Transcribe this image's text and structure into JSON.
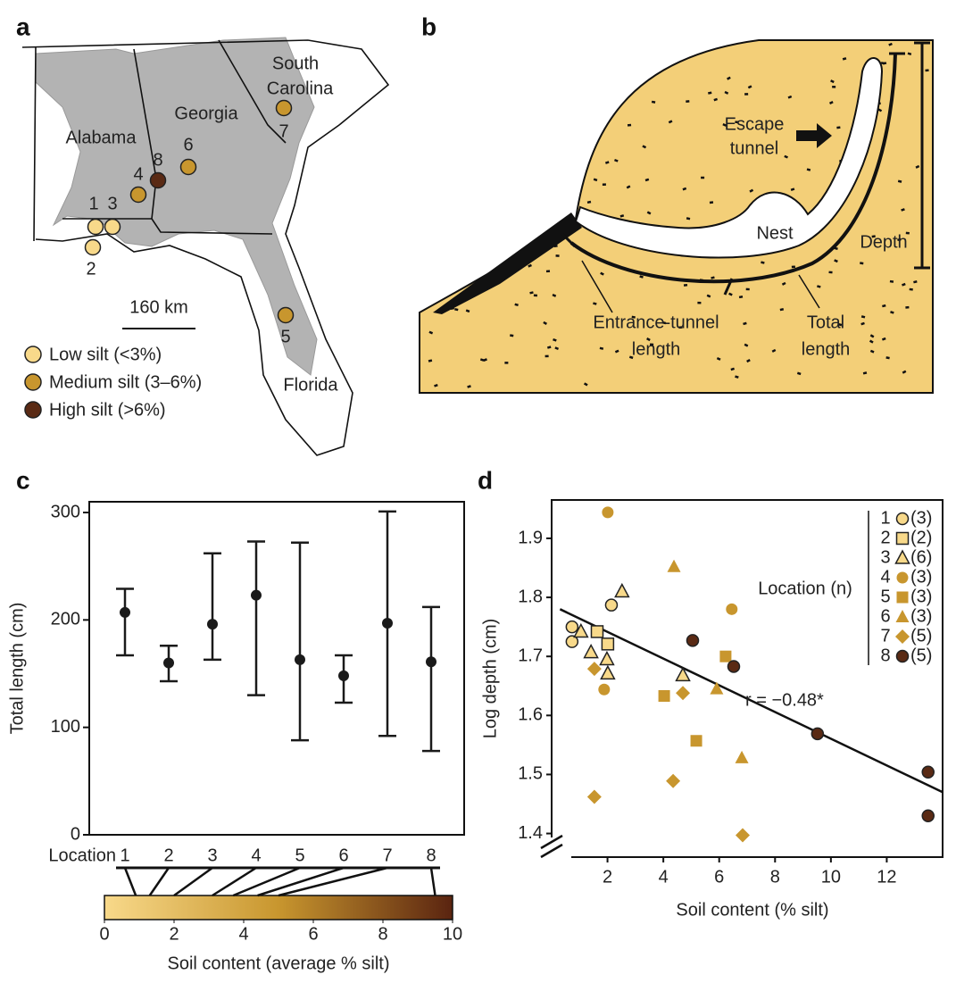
{
  "figure": {
    "a": {
      "panel_label": "a",
      "states": {
        "alabama": "Alabama",
        "georgia": "Georgia",
        "south_carolina": [
          "South",
          "Carolina"
        ],
        "florida": "Florida"
      },
      "sites": [
        {
          "label": "1",
          "group": 0
        },
        {
          "label": "2",
          "group": 0
        },
        {
          "label": "3",
          "group": 0
        },
        {
          "label": "4",
          "group": 1
        },
        {
          "label": "5",
          "group": 1
        },
        {
          "label": "6",
          "group": 1
        },
        {
          "label": "7",
          "group": 1
        },
        {
          "label": "8",
          "group": 2
        }
      ],
      "scale_bar": "160 km",
      "legend": [
        {
          "text": "Low silt (<3%)",
          "color": "#f8d98a"
        },
        {
          "text": "Medium silt (3–6%)",
          "color": "#c8962e"
        },
        {
          "text": "High silt (>6%)",
          "color": "#5a2a14"
        }
      ]
    },
    "b": {
      "panel_label": "b",
      "escape_tunnel": [
        "Escape",
        "tunnel"
      ],
      "nest": "Nest",
      "depth": "Depth",
      "entrance_tunnel_length": [
        "Entrance-tunnel",
        "length"
      ],
      "total_length": [
        "Total",
        "length"
      ]
    }
  },
  "chart_data": [
    {
      "type": "errorbar",
      "panel_label": "c",
      "x_label": "Location",
      "y_label": "Total length (cm)",
      "categories": [
        "1",
        "2",
        "3",
        "4",
        "5",
        "6",
        "7",
        "8"
      ],
      "values": [
        207,
        160,
        196,
        223,
        163,
        148,
        197,
        161
      ],
      "upper": [
        229,
        176,
        262,
        273,
        272,
        167,
        301,
        212
      ],
      "lower": [
        167,
        143,
        163,
        130,
        88,
        123,
        92,
        78
      ],
      "ylim": [
        0,
        310
      ],
      "yticks": [
        0,
        100,
        200,
        300
      ],
      "color": "#1a1a1a",
      "colorbar": {
        "label": "Soil content (average % silt)",
        "lim": [
          0,
          10
        ],
        "ticks": [
          0,
          2,
          4,
          6,
          8,
          10
        ],
        "colors": [
          "#f8d98a",
          "#c8962e",
          "#5a2410"
        ],
        "location_silt": [
          0.9,
          1.3,
          2.0,
          3.1,
          3.7,
          4.4,
          5.0,
          9.5
        ]
      }
    },
    {
      "type": "scatter",
      "panel_label": "d",
      "x_label": "Soil content (% silt)",
      "y_label": "Log depth (cm)",
      "xlim": [
        0,
        14
      ],
      "ylim": [
        1.36,
        1.965
      ],
      "xticks": [
        2,
        4,
        6,
        8,
        10,
        12
      ],
      "yticks": [
        1.4,
        1.5,
        1.6,
        1.7,
        1.8,
        1.9
      ],
      "legend_title": "Location (n)",
      "series": [
        {
          "name": "1",
          "n_label": "(3)",
          "marker": "circle",
          "color": "#f8d98a",
          "x": [
            0.73,
            0.73,
            2.14
          ],
          "values": [
            1.75,
            1.725,
            1.787
          ]
        },
        {
          "name": "2",
          "n_label": "(2)",
          "marker": "square",
          "color": "#f8d98a",
          "x": [
            1.63,
            2.01
          ],
          "values": [
            1.742,
            1.721
          ]
        },
        {
          "name": "3",
          "n_label": "(6)",
          "marker": "triangle",
          "color": "#f8d98a",
          "x": [
            1.05,
            1.41,
            1.98,
            2.01,
            2.52,
            4.7
          ],
          "values": [
            1.742,
            1.707,
            1.695,
            1.671,
            1.81,
            1.668
          ]
        },
        {
          "name": "4",
          "n_label": "(3)",
          "marker": "circle",
          "color": "#c8962e",
          "x": [
            2.01,
            1.88,
            6.45
          ],
          "values": [
            1.944,
            1.644,
            1.78
          ]
        },
        {
          "name": "5",
          "n_label": "(3)",
          "marker": "square",
          "color": "#c8962e",
          "x": [
            4.03,
            5.18,
            6.23
          ],
          "values": [
            1.633,
            1.557,
            1.7
          ]
        },
        {
          "name": "6",
          "n_label": "(3)",
          "marker": "triangle",
          "color": "#c8962e",
          "x": [
            4.38,
            5.91,
            6.81
          ],
          "values": [
            1.852,
            1.645,
            1.528
          ]
        },
        {
          "name": "7",
          "n_label": "(5)",
          "marker": "diamond",
          "color": "#c8962e",
          "x": [
            1.53,
            1.53,
            4.35,
            4.7,
            6.84
          ],
          "values": [
            1.679,
            1.462,
            1.489,
            1.638,
            1.397
          ]
        },
        {
          "name": "8",
          "n_label": "(5)",
          "marker": "circle",
          "color": "#5a2a14",
          "x": [
            5.05,
            6.52,
            9.52,
            13.48,
            13.48
          ],
          "values": [
            1.727,
            1.683,
            1.569,
            1.504,
            1.43
          ]
        }
      ],
      "trend": {
        "x": [
          0.3,
          14
        ],
        "y": [
          1.78,
          1.47
        ]
      },
      "annotation": "r = −0.48*"
    }
  ]
}
